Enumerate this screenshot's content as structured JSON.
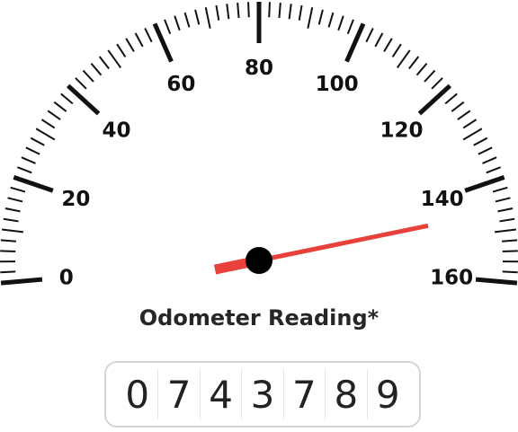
{
  "gauge": {
    "min": 0,
    "max": 160,
    "major_step": 20,
    "minor_step": 2,
    "value": 146,
    "labels": [
      "0",
      "20",
      "40",
      "60",
      "80",
      "100",
      "120",
      "140",
      "160"
    ],
    "needle_color": "#e8403a",
    "hub_color": "#000000"
  },
  "caption": "Odometer Reading*",
  "odometer": {
    "digits": [
      "0",
      "7",
      "4",
      "3",
      "7",
      "8",
      "9"
    ]
  }
}
